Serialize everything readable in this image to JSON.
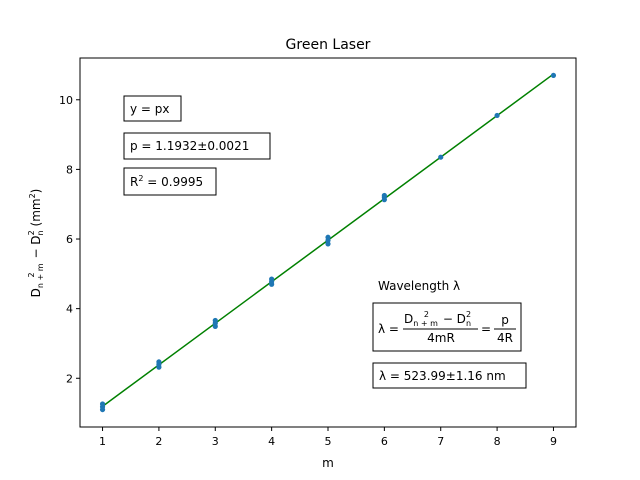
{
  "chart_data": {
    "type": "scatter",
    "title": "Green Laser",
    "xlabel": "m",
    "ylabel": {
      "pre": "D",
      "sub1": "n + m",
      "sup1": "2",
      "mid": " − D",
      "sub2": "n",
      "sup2": "2",
      "post": " (mm",
      "sup3": "2",
      "end": ")"
    },
    "xlim": [
      0.6,
      9.4
    ],
    "ylim": [
      0.6,
      11.2
    ],
    "x_ticks": [
      1,
      2,
      3,
      4,
      5,
      6,
      7,
      8,
      9
    ],
    "y_ticks": [
      2,
      4,
      6,
      8,
      10
    ],
    "grid": false,
    "point_color": "#1f77b4",
    "line_color": "#008000",
    "points": [
      {
        "x": 1,
        "y": 1.1
      },
      {
        "x": 1,
        "y": 1.18
      },
      {
        "x": 1,
        "y": 1.26
      },
      {
        "x": 2,
        "y": 2.32
      },
      {
        "x": 2,
        "y": 2.4
      },
      {
        "x": 2,
        "y": 2.47
      },
      {
        "x": 3,
        "y": 3.49
      },
      {
        "x": 3,
        "y": 3.58
      },
      {
        "x": 3,
        "y": 3.66
      },
      {
        "x": 4,
        "y": 4.7
      },
      {
        "x": 4,
        "y": 4.78
      },
      {
        "x": 4,
        "y": 4.85
      },
      {
        "x": 5,
        "y": 5.86
      },
      {
        "x": 5,
        "y": 5.96
      },
      {
        "x": 5,
        "y": 6.05
      },
      {
        "x": 6,
        "y": 7.13
      },
      {
        "x": 6,
        "y": 7.2
      },
      {
        "x": 6,
        "y": 7.25
      },
      {
        "x": 7,
        "y": 8.35
      },
      {
        "x": 8,
        "y": 9.55
      },
      {
        "x": 9,
        "y": 10.7
      }
    ],
    "fit": {
      "slope": 1.1932,
      "x_range": [
        1,
        9
      ]
    },
    "annotations": {
      "model": "y = px",
      "p_value": "p = 1.1932±0.0021",
      "r2_pre": "R",
      "r2_sup": "2",
      "r2_post": " = 0.9995",
      "wavelength_heading": "Wavelength λ",
      "formula": {
        "lambda_eq": "λ =",
        "num_pre": "D",
        "num_sub1": "n + m",
        "num_sup1": "2",
        "num_mid": " − D",
        "num_sub2": "n",
        "num_sup2": "2",
        "den1": "4mR",
        "eq2": "=",
        "num2": "p",
        "den2": "4R"
      },
      "result": "λ = 523.99±1.16 nm"
    }
  }
}
